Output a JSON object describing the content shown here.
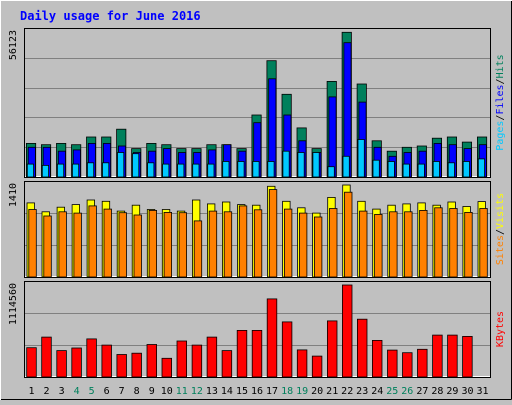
{
  "title": "Daily usage for June 2016",
  "colors": {
    "background": "#c0c0c0",
    "title": "#0000ff",
    "hits": "#00805c",
    "files": "#0000ff",
    "pages": "#00c8ff",
    "visits": "#ffff00",
    "sites": "#ff8000",
    "kbytes": "#ff0000",
    "weekend_day": "#00805c",
    "weekday": "#000000",
    "grid": "#808080",
    "max_label": "#000000"
  },
  "chart_data": [
    {
      "type": "bar",
      "panel": "hits-files-pages",
      "categories": [
        "1",
        "2",
        "3",
        "4",
        "5",
        "6",
        "7",
        "8",
        "9",
        "10",
        "11",
        "12",
        "13",
        "14",
        "15",
        "16",
        "17",
        "18",
        "19",
        "20",
        "21",
        "22",
        "23",
        "24",
        "25",
        "26",
        "27",
        "28",
        "29",
        "30",
        "31"
      ],
      "weekend_categories": [
        "4",
        "5",
        "11",
        "12",
        "18",
        "19",
        "25",
        "26"
      ],
      "max_label": "56123",
      "ylim": [
        0,
        56123
      ],
      "series": [
        {
          "name": "Hits",
          "values": [
            13000,
            12500,
            13000,
            12500,
            15500,
            15500,
            18500,
            11000,
            13000,
            12500,
            11000,
            11000,
            12500,
            12500,
            11000,
            24000,
            45000,
            32000,
            19000,
            11000,
            37000,
            56000,
            36000,
            14000,
            10000,
            11500,
            12000,
            15000,
            15500,
            13500,
            15500
          ]
        },
        {
          "name": "Files",
          "values": [
            11500,
            11500,
            10000,
            10500,
            13000,
            13000,
            12000,
            9500,
            10000,
            11000,
            9500,
            9500,
            10500,
            12500,
            10000,
            21000,
            38000,
            24000,
            14000,
            9500,
            31000,
            52000,
            29000,
            11500,
            8000,
            9500,
            10000,
            13000,
            12500,
            11000,
            12500
          ]
        },
        {
          "name": "Pages",
          "values": [
            5000,
            4500,
            5000,
            5000,
            5500,
            5500,
            9500,
            9000,
            5500,
            5000,
            5000,
            5000,
            5000,
            6000,
            6000,
            6000,
            6000,
            10000,
            9500,
            9500,
            4000,
            8000,
            14500,
            6500,
            6000,
            5000,
            5000,
            6000,
            5500,
            6000,
            7000
          ]
        }
      ]
    },
    {
      "type": "bar",
      "panel": "visits-sites",
      "categories": [
        "1",
        "2",
        "3",
        "4",
        "5",
        "6",
        "7",
        "8",
        "9",
        "10",
        "11",
        "12",
        "13",
        "14",
        "15",
        "16",
        "17",
        "18",
        "19",
        "20",
        "21",
        "22",
        "23",
        "24",
        "25",
        "26",
        "27",
        "28",
        "29",
        "30",
        "31"
      ],
      "max_label": "1410",
      "ylim": [
        0,
        1410
      ],
      "series": [
        {
          "name": "Visits",
          "values": [
            1135,
            1000,
            1070,
            1110,
            1180,
            1160,
            1010,
            1100,
            1035,
            1035,
            1010,
            1180,
            1120,
            1150,
            1110,
            1100,
            1390,
            1160,
            1060,
            980,
            1220,
            1410,
            1160,
            1040,
            1100,
            1120,
            1135,
            1100,
            1150,
            1080,
            1155
          ]
        },
        {
          "name": "Sites",
          "values": [
            1035,
            935,
            1000,
            980,
            1090,
            1040,
            985,
            950,
            1020,
            990,
            985,
            860,
            1010,
            1000,
            1090,
            1030,
            1340,
            1040,
            980,
            920,
            1050,
            1300,
            1010,
            960,
            1000,
            1000,
            1020,
            1060,
            1050,
            990,
            1050
          ]
        }
      ]
    },
    {
      "type": "bar",
      "panel": "kbytes",
      "categories": [
        "1",
        "2",
        "3",
        "4",
        "5",
        "6",
        "7",
        "8",
        "9",
        "10",
        "11",
        "12",
        "13",
        "14",
        "15",
        "16",
        "17",
        "18",
        "19",
        "20",
        "21",
        "22",
        "23",
        "24",
        "25",
        "26",
        "27",
        "28",
        "29",
        "30",
        "31"
      ],
      "max_label": "1114560",
      "ylim": [
        0,
        1114560
      ],
      "series": [
        {
          "name": "KBytes",
          "values": [
            355000,
            483000,
            320000,
            351000,
            461000,
            387000,
            272000,
            288000,
            394000,
            226000,
            436000,
            387000,
            483000,
            320000,
            565000,
            565000,
            946000,
            668000,
            328000,
            253000,
            680000,
            1114560,
            700000,
            443000,
            326000,
            294000,
            336000,
            508000,
            508000,
            492000,
            0
          ]
        }
      ]
    }
  ],
  "legend_right": {
    "panel1": [
      {
        "text": "Pages",
        "color_key": "pages"
      },
      {
        "text": "/",
        "color_key": "weekday"
      },
      {
        "text": "Files",
        "color_key": "files"
      },
      {
        "text": "/",
        "color_key": "weekday"
      },
      {
        "text": "Hits",
        "color_key": "hits"
      }
    ],
    "panel2": [
      {
        "text": "Sites",
        "color_key": "sites"
      },
      {
        "text": "/",
        "color_key": "weekday"
      },
      {
        "text": "Visits",
        "color_key": "visits"
      }
    ],
    "panel3": [
      {
        "text": "KBytes",
        "color_key": "kbytes"
      }
    ]
  }
}
